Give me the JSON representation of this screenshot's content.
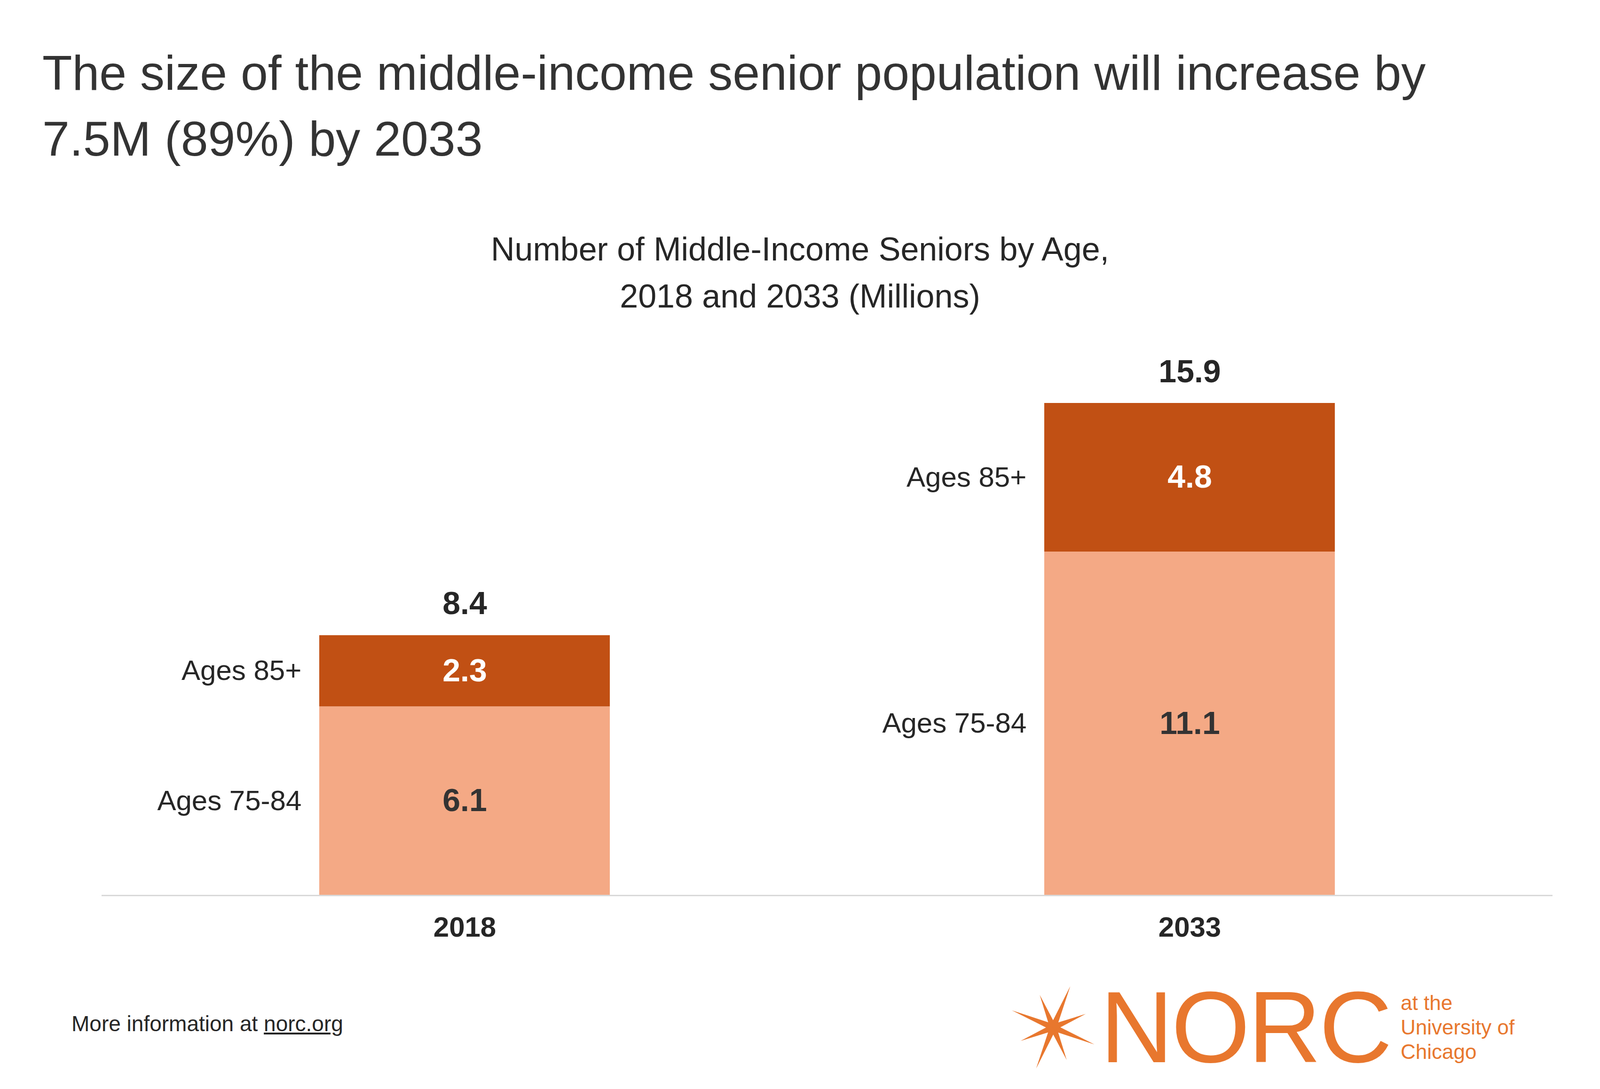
{
  "chart_data": {
    "type": "bar",
    "title": "The size of the middle-income senior population will increase by 7.5M (89%) by 2033",
    "subtitle": [
      "Number of Middle-Income Seniors by Age,",
      "2018 and 2033 (Millions)"
    ],
    "categories": [
      "2018",
      "2033"
    ],
    "series": [
      {
        "name": "Ages 75-84",
        "color": "#F4A985",
        "values": [
          6.1,
          11.1
        ]
      },
      {
        "name": "Ages 85+",
        "color": "#C15014",
        "values": [
          2.3,
          4.8
        ]
      }
    ],
    "totals": [
      8.4,
      15.9
    ],
    "stacked": true,
    "data_labels": true,
    "tick_labels": "x",
    "footer": {
      "text": "More information at",
      "link": "norc.org"
    },
    "logo": {
      "text": "NORC",
      "tagline": [
        "at the",
        "University of",
        "Chicago"
      ]
    }
  }
}
